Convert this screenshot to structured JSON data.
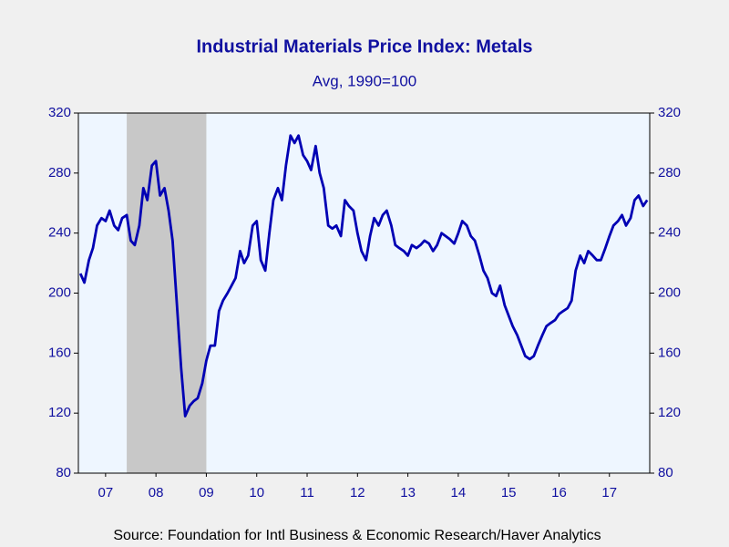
{
  "chart_data": {
    "type": "line",
    "title": "Industrial Materials Price Index: Metals",
    "subtitle": "Avg, 1990=100",
    "source": "Source:  Foundation for Intl Business & Economic Research/Haver Analytics",
    "color": "#0000b4",
    "x": [
      2007,
      2007.08,
      2007.17,
      2007.25,
      2007.33,
      2007.42,
      2007.5,
      2007.58,
      2007.67,
      2007.75,
      2007.83,
      2007.92,
      2008,
      2008.08,
      2008.17,
      2008.25,
      2008.33,
      2008.42,
      2008.5,
      2008.58,
      2008.67,
      2008.75,
      2008.83,
      2008.92,
      2009,
      2009.08,
      2009.17,
      2009.25,
      2009.33,
      2009.42,
      2009.5,
      2009.58,
      2009.67,
      2009.75,
      2009.83,
      2009.92,
      2010,
      2010.08,
      2010.17,
      2010.25,
      2010.33,
      2010.42,
      2010.5,
      2010.58,
      2010.67,
      2010.75,
      2010.83,
      2010.92,
      2011,
      2011.08,
      2011.17,
      2011.25,
      2011.33,
      2011.42,
      2011.5,
      2011.58,
      2011.67,
      2011.75,
      2011.83,
      2011.92,
      2012,
      2012.08,
      2012.17,
      2012.25,
      2012.33,
      2012.42,
      2012.5,
      2012.58,
      2012.67,
      2012.75,
      2012.83,
      2012.92,
      2013,
      2013.08,
      2013.17,
      2013.25,
      2013.33,
      2013.42,
      2013.5,
      2013.58,
      2013.67,
      2013.75,
      2013.83,
      2013.92,
      2014,
      2014.08,
      2014.17,
      2014.25,
      2014.33,
      2014.42,
      2014.5,
      2014.58,
      2014.67,
      2014.75,
      2014.83,
      2014.92,
      2015,
      2015.08,
      2015.17,
      2015.25,
      2015.33,
      2015.42,
      2015.5,
      2015.58,
      2015.67,
      2015.75,
      2015.83,
      2015.92,
      2016,
      2016.08,
      2016.17,
      2016.25,
      2016.33,
      2016.42,
      2016.5,
      2016.58,
      2016.67,
      2016.75,
      2016.83,
      2016.92,
      2017,
      2017.08,
      2017.17,
      2017.25,
      2017.33,
      2017.42,
      2017.5,
      2017.58,
      2017.67,
      2017.75,
      2017.83,
      2017.92,
      2018,
      2018.08,
      2018.17,
      2018.25
    ],
    "values": [
      213,
      207,
      222,
      230,
      245,
      250,
      248,
      255,
      245,
      242,
      250,
      252,
      235,
      232,
      245,
      270,
      262,
      285,
      288,
      265,
      270,
      255,
      235,
      190,
      150,
      118,
      125,
      128,
      130,
      140,
      155,
      165,
      165,
      188,
      195,
      200,
      205,
      210,
      228,
      220,
      225,
      245,
      248,
      222,
      215,
      240,
      262,
      270,
      262,
      285,
      305,
      300,
      305,
      292,
      288,
      282,
      298,
      280,
      270,
      245,
      243,
      245,
      238,
      262,
      258,
      255,
      240,
      228,
      222,
      238,
      250,
      245,
      252,
      255,
      245,
      232,
      230,
      228,
      225,
      232,
      230,
      232,
      235,
      233,
      228,
      232,
      240,
      238,
      236,
      233,
      240,
      248,
      245,
      238,
      235,
      225,
      215,
      210,
      200,
      198,
      205,
      192,
      185,
      178,
      172,
      165,
      158,
      156,
      158,
      165,
      172,
      178,
      180,
      182,
      186,
      188,
      190,
      195,
      215,
      225,
      220,
      228,
      225,
      222,
      222,
      230,
      238,
      245,
      248,
      252,
      245,
      250,
      262,
      265,
      258,
      262
    ],
    "shaded_regions": [
      [
        2007.92,
        2009.5
      ]
    ],
    "xlim": [
      2006.96,
      2018.3
    ],
    "xticks": [
      {
        "value": 2007.5,
        "label": "07"
      },
      {
        "value": 2008.5,
        "label": "08"
      },
      {
        "value": 2009.5,
        "label": "09"
      },
      {
        "value": 2010.5,
        "label": "10"
      },
      {
        "value": 2011.5,
        "label": "11"
      },
      {
        "value": 2012.5,
        "label": "12"
      },
      {
        "value": 2013.5,
        "label": "13"
      },
      {
        "value": 2014.5,
        "label": "14"
      },
      {
        "value": 2015.5,
        "label": "15"
      },
      {
        "value": 2016.5,
        "label": "16"
      },
      {
        "value": 2017.5,
        "label": "17"
      }
    ],
    "ylim": [
      80,
      320
    ],
    "yticks": [
      80,
      120,
      160,
      200,
      240,
      280,
      320
    ],
    "y2lim": [
      80,
      320
    ],
    "y2ticks": [
      80,
      120,
      160,
      200,
      240,
      280,
      320
    ]
  }
}
